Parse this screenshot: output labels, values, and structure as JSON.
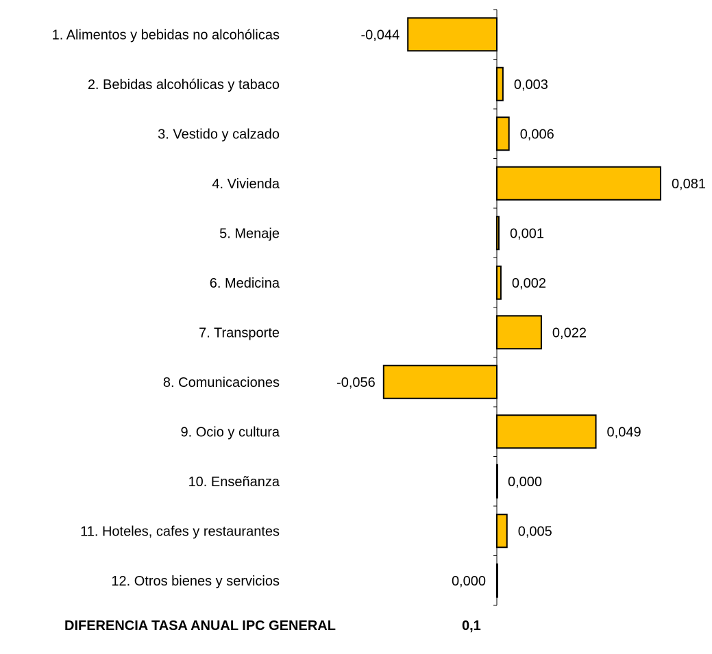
{
  "chart_data": {
    "type": "bar",
    "orientation": "horizontal",
    "categories": [
      "1. Alimentos y bebidas no alcohólicas",
      "2. Bebidas alcohólicas y tabaco",
      "3. Vestido y calzado",
      "4. Vivienda",
      "5. Menaje",
      "6. Medicina",
      "7. Transporte",
      "8. Comunicaciones",
      "9. Ocio y cultura",
      "10. Enseñanza",
      "11. Hoteles, cafes y restaurantes",
      "12. Otros bienes y servicios"
    ],
    "values": [
      -0.044,
      0.003,
      0.006,
      0.081,
      0.001,
      0.002,
      0.022,
      -0.056,
      0.049,
      0.0,
      0.005,
      0.0
    ],
    "value_labels": [
      "-0,044",
      "0,003",
      "0,006",
      "0,081",
      "0,001",
      "0,002",
      "0,022",
      "-0,056",
      "0,049",
      "0,000",
      "0,005",
      "0,000"
    ],
    "bar_color": "#FFC000",
    "bar_outline": "#000000",
    "grid": false,
    "legend": "none"
  },
  "footer": {
    "label": "DIFERENCIA TASA ANUAL IPC GENERAL",
    "value": "0,1"
  }
}
